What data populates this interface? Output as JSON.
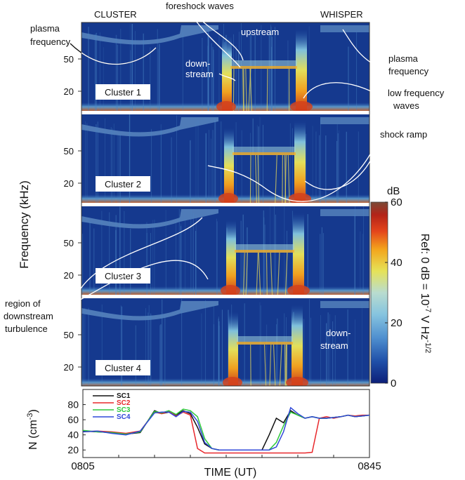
{
  "header": {
    "left_label": "CLUSTER",
    "right_label": "WHISPER"
  },
  "annotations": {
    "foreshock_waves": "foreshock waves",
    "upstream": "upstream",
    "downstream_top_1": "down-",
    "downstream_top_2": "stream",
    "plasma_freq_left_1": "plasma",
    "plasma_freq_left_2": "frequency",
    "plasma_freq_right_1": "plasma",
    "plasma_freq_right_2": "frequency",
    "low_freq_1": "low frequency",
    "low_freq_2": "waves",
    "shock_ramp": "shock ramp",
    "region_1": "region of",
    "region_2": "downstream",
    "region_3": "turbulence",
    "downstream_p4_1": "down-",
    "downstream_p4_2": "stream"
  },
  "colorbar": {
    "unit": "dB",
    "ticks": [
      "60",
      "40",
      "20",
      "0"
    ],
    "ref_label": "Ref: 0 dB = 10",
    "ref_exp1": "-7",
    "ref_mid": " V Hz",
    "ref_exp2": "-1/2",
    "colors": [
      "#0c1f78",
      "#1f4fa8",
      "#4f8fcf",
      "#86c4df",
      "#b9dccf",
      "#e6e257",
      "#f3a41c",
      "#e4441b",
      "#b32318",
      "#7b4a36"
    ]
  },
  "spectrograms": {
    "ylabel": "Frequency (kHz)",
    "y_ticks": [
      "50",
      "20"
    ],
    "background": "#15398e",
    "panels": [
      {
        "label": "Cluster 1"
      },
      {
        "label": "Cluster 2"
      },
      {
        "label": "Cluster 3"
      },
      {
        "label": "Cluster 4"
      }
    ]
  },
  "chart_data": {
    "type": "line",
    "title": "",
    "xlabel": "TIME (UT)",
    "ylabel": "N (cm",
    "ylabel_exp": "-3",
    "ylabel_end": ")",
    "x_tick_labels": [
      "0805",
      "0845"
    ],
    "xlim": [
      805,
      845
    ],
    "ylim": [
      10,
      100
    ],
    "y_ticks": [
      20,
      40,
      60,
      80
    ],
    "legend_position": "top-left",
    "x": [
      805,
      807,
      809,
      811,
      813,
      815,
      816,
      817,
      818,
      819,
      820,
      821,
      822,
      823,
      824,
      825,
      826,
      827,
      828,
      829,
      830,
      831,
      832,
      833,
      834,
      835,
      836,
      837,
      838,
      839,
      840,
      841,
      842,
      843,
      844,
      845
    ],
    "series": [
      {
        "name": "SC1",
        "color": "#111111",
        "values": [
          45,
          44,
          43,
          41,
          43,
          72,
          68,
          70,
          66,
          72,
          68,
          50,
          28,
          22,
          20,
          20,
          20,
          20,
          20,
          20,
          20,
          40,
          62,
          56,
          72,
          66,
          62,
          64,
          62,
          62,
          63,
          64,
          66,
          64,
          65,
          66
        ]
      },
      {
        "name": "SC2",
        "color": "#e8282c",
        "values": [
          44,
          45,
          44,
          42,
          45,
          70,
          68,
          71,
          65,
          70,
          66,
          22,
          16,
          16,
          16,
          16,
          16,
          16,
          16,
          16,
          16,
          16,
          16,
          16,
          16,
          16,
          16,
          17,
          62,
          64,
          62,
          64,
          66,
          65,
          66,
          66
        ]
      },
      {
        "name": "SC3",
        "color": "#2ec83c",
        "values": [
          46,
          44,
          43,
          41,
          44,
          71,
          69,
          72,
          67,
          74,
          72,
          64,
          35,
          22,
          20,
          20,
          20,
          20,
          20,
          20,
          20,
          20,
          30,
          52,
          70,
          66,
          62,
          64,
          62,
          62,
          63,
          64,
          66,
          64,
          65,
          66
        ]
      },
      {
        "name": "SC4",
        "color": "#2f48d8",
        "values": [
          44,
          45,
          42,
          40,
          45,
          69,
          70,
          70,
          64,
          71,
          70,
          58,
          30,
          22,
          20,
          20,
          20,
          20,
          20,
          20,
          20,
          20,
          24,
          44,
          76,
          68,
          62,
          64,
          62,
          62,
          63,
          64,
          66,
          64,
          65,
          66
        ]
      }
    ]
  }
}
